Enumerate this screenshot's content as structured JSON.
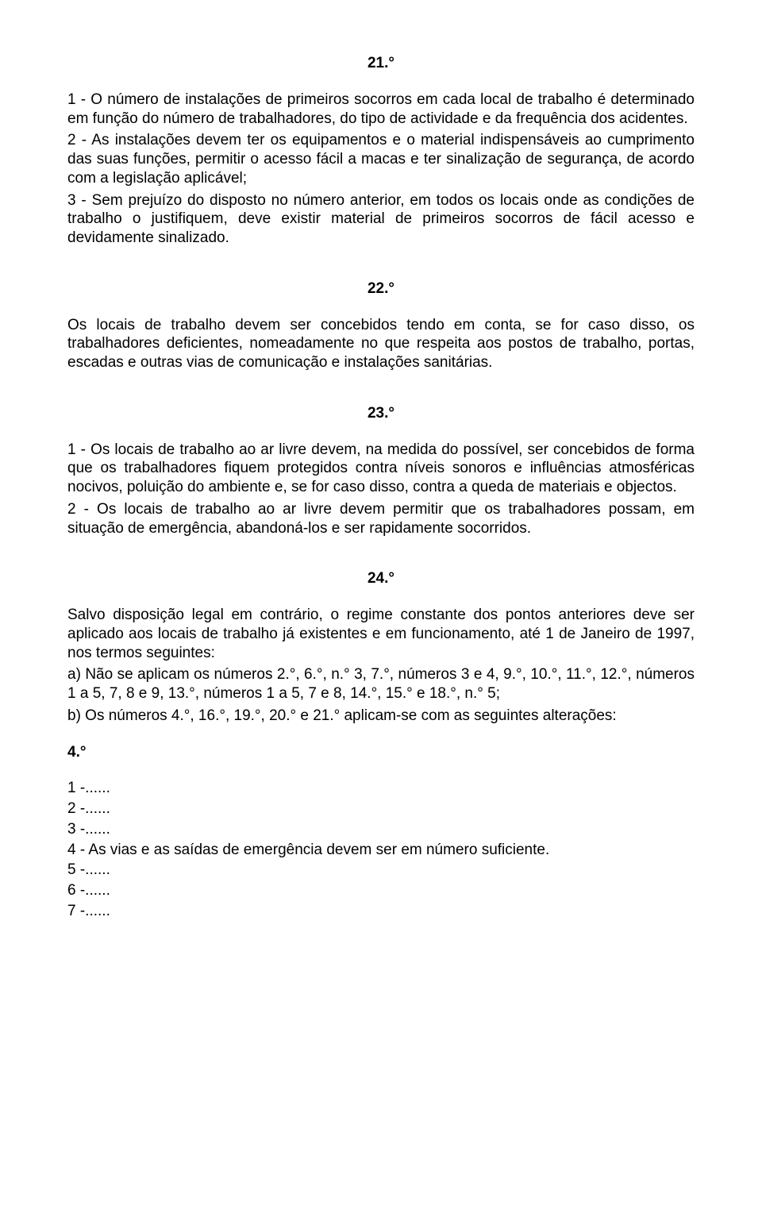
{
  "art21": {
    "num": "21.°",
    "p1": "1 - O número de instalações de primeiros socorros em cada local de trabalho é determinado em função do número de trabalhadores, do tipo de actividade e da frequência dos acidentes.",
    "p2": "2 - As instalações devem ter os equipamentos e o material indispensáveis ao cumprimento das suas funções, permitir o acesso fácil a macas e ter sinalização de segurança, de acordo com a legislação aplicável;",
    "p3": "3 - Sem prejuízo do disposto no número anterior, em todos os locais onde as condições de trabalho o justifiquem, deve existir material de primeiros socorros de fácil acesso e devidamente sinalizado."
  },
  "art22": {
    "num": "22.°",
    "p1": "Os locais de trabalho devem ser concebidos tendo em conta, se for caso disso, os trabalhadores deficientes, nomeadamente no que respeita aos postos de trabalho, portas, escadas e outras vias de comunicação e instalações sanitárias."
  },
  "art23": {
    "num": "23.°",
    "p1": "1 - Os locais de trabalho ao ar livre devem, na medida do possível, ser concebidos de forma que os trabalhadores fiquem protegidos contra níveis sonoros e influências atmosféricas nocivos, poluição do ambiente e, se for caso disso, contra a queda de materiais e objectos.",
    "p2": "2 - Os locais de trabalho ao ar livre devem permitir que os trabalhadores possam, em situação de emergência, abandoná-los e ser rapidamente socorridos."
  },
  "art24": {
    "num": "24.°",
    "p1": "Salvo disposição legal em contrário, o regime constante dos pontos anteriores deve ser aplicado aos locais de trabalho já existentes e em funcionamento, até 1 de Janeiro de 1997, nos termos seguintes:",
    "pa": "a) Não se aplicam os números 2.°, 6.°, n.° 3, 7.°, números 3 e 4, 9.°, 10.°, 11.°, 12.°, números 1 a 5, 7, 8 e 9, 13.°, números 1 a 5, 7 e 8, 14.°, 15.° e 18.°, n.° 5;",
    "pb": "b) Os números 4.°, 16.°, 19.°, 20.° e 21.° aplicam-se com as seguintes alterações:"
  },
  "art4": {
    "num": "4.°",
    "l1": "1 -......",
    "l2": "2 -......",
    "l3": "3 -......",
    "l4": "4 - As vias e as saídas de emergência devem ser em número suficiente.",
    "l5": "5 -......",
    "l6": "6 -......",
    "l7": "7 -......"
  }
}
